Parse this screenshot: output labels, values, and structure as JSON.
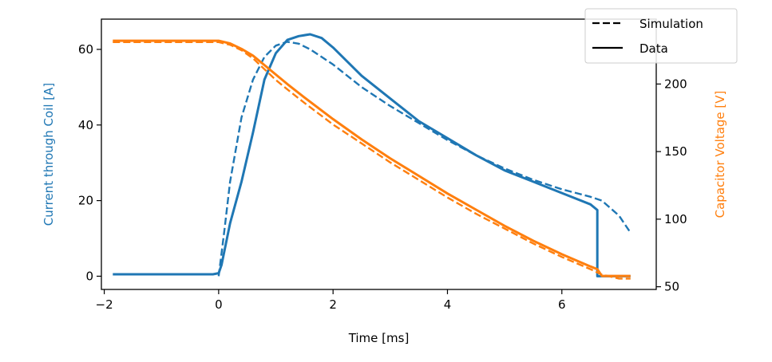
{
  "chart_data": {
    "type": "line",
    "title": "",
    "xlabel": "Time [ms]",
    "ylabel_left": "Current through Coil [A]",
    "ylabel_right": "Capacitor Voltage [V]",
    "xlim": [
      -2.05,
      7.65
    ],
    "ylim_left": [
      -3.5,
      68
    ],
    "ylim_right": [
      48,
      248
    ],
    "x_ticks": [
      -2,
      0,
      2,
      4,
      6
    ],
    "x_tick_labels": [
      "−2",
      "0",
      "2",
      "4",
      "6"
    ],
    "y_left_ticks": [
      0,
      20,
      40,
      60
    ],
    "y_left_tick_labels": [
      "0",
      "20",
      "40",
      "60"
    ],
    "y_right_ticks": [
      50,
      100,
      150,
      200
    ],
    "y_right_tick_labels": [
      "50",
      "100",
      "150",
      "200"
    ],
    "grid": false,
    "legend": {
      "placement": "top-right",
      "entries": [
        {
          "label": "Simulation",
          "style": "dashed"
        },
        {
          "label": "Data",
          "style": "solid"
        }
      ]
    },
    "colors": {
      "current": "#1f77b4",
      "voltage": "#ff7f0e",
      "frame": "#000000"
    },
    "series": [
      {
        "axis": "left",
        "color": "#1f77b4",
        "style": "solid",
        "x": [
          -1.85,
          -1.5,
          -1.0,
          -0.5,
          -0.1,
          0.0,
          0.05,
          0.2,
          0.4,
          0.6,
          0.8,
          1.0,
          1.2,
          1.4,
          1.6,
          1.8,
          2.0,
          2.5,
          3.0,
          3.5,
          4.0,
          4.5,
          5.0,
          5.5,
          6.0,
          6.5,
          6.62,
          6.62,
          7.2
        ],
        "y": [
          0.5,
          0.5,
          0.5,
          0.5,
          0.5,
          0.8,
          3,
          14,
          25,
          38,
          52,
          59,
          62.5,
          63.5,
          64,
          63,
          60.5,
          53,
          47,
          41,
          36.5,
          32,
          28,
          25,
          22,
          19,
          17.5,
          0,
          0
        ]
      },
      {
        "axis": "left",
        "color": "#1f77b4",
        "style": "dashed",
        "x": [
          0.0,
          0.1,
          0.2,
          0.4,
          0.6,
          0.8,
          1.0,
          1.2,
          1.4,
          1.6,
          1.8,
          2.0,
          2.5,
          3.0,
          3.5,
          4.0,
          4.5,
          5.0,
          5.5,
          6.0,
          6.5,
          6.7,
          7.0,
          7.2
        ],
        "y": [
          0,
          12,
          25,
          42,
          52,
          58,
          61,
          62,
          61.5,
          60,
          58,
          56,
          50,
          45,
          40.5,
          36,
          32,
          28.5,
          25.5,
          23,
          21,
          20,
          16,
          11.5
        ]
      },
      {
        "axis": "right",
        "color": "#ff7f0e",
        "style": "solid",
        "x": [
          -1.85,
          -1.5,
          -1.0,
          -0.5,
          0.0,
          0.2,
          0.4,
          0.6,
          0.8,
          1.0,
          1.2,
          1.5,
          2.0,
          2.5,
          3.0,
          3.5,
          4.0,
          4.5,
          5.0,
          5.5,
          6.0,
          6.5,
          6.62,
          6.7,
          7.2
        ],
        "y": [
          232,
          232,
          232,
          232,
          232,
          230,
          226,
          221,
          214,
          207,
          200,
          190,
          174,
          159,
          145,
          132,
          119,
          107,
          95,
          84,
          74,
          65,
          63,
          58,
          58
        ]
      },
      {
        "axis": "right",
        "color": "#ff7f0e",
        "style": "dashed",
        "x": [
          -1.85,
          -0.5,
          0.0,
          0.2,
          0.4,
          0.6,
          0.8,
          1.0,
          1.2,
          1.5,
          2.0,
          2.5,
          3.0,
          3.5,
          4.0,
          4.5,
          5.0,
          5.5,
          6.0,
          6.5,
          6.7,
          7.0,
          7.2
        ],
        "y": [
          231,
          231,
          231,
          229,
          225,
          219,
          211,
          203,
          196,
          186,
          170,
          156,
          142,
          129,
          116,
          104,
          93,
          82,
          72,
          63,
          59,
          56,
          56
        ]
      }
    ]
  }
}
